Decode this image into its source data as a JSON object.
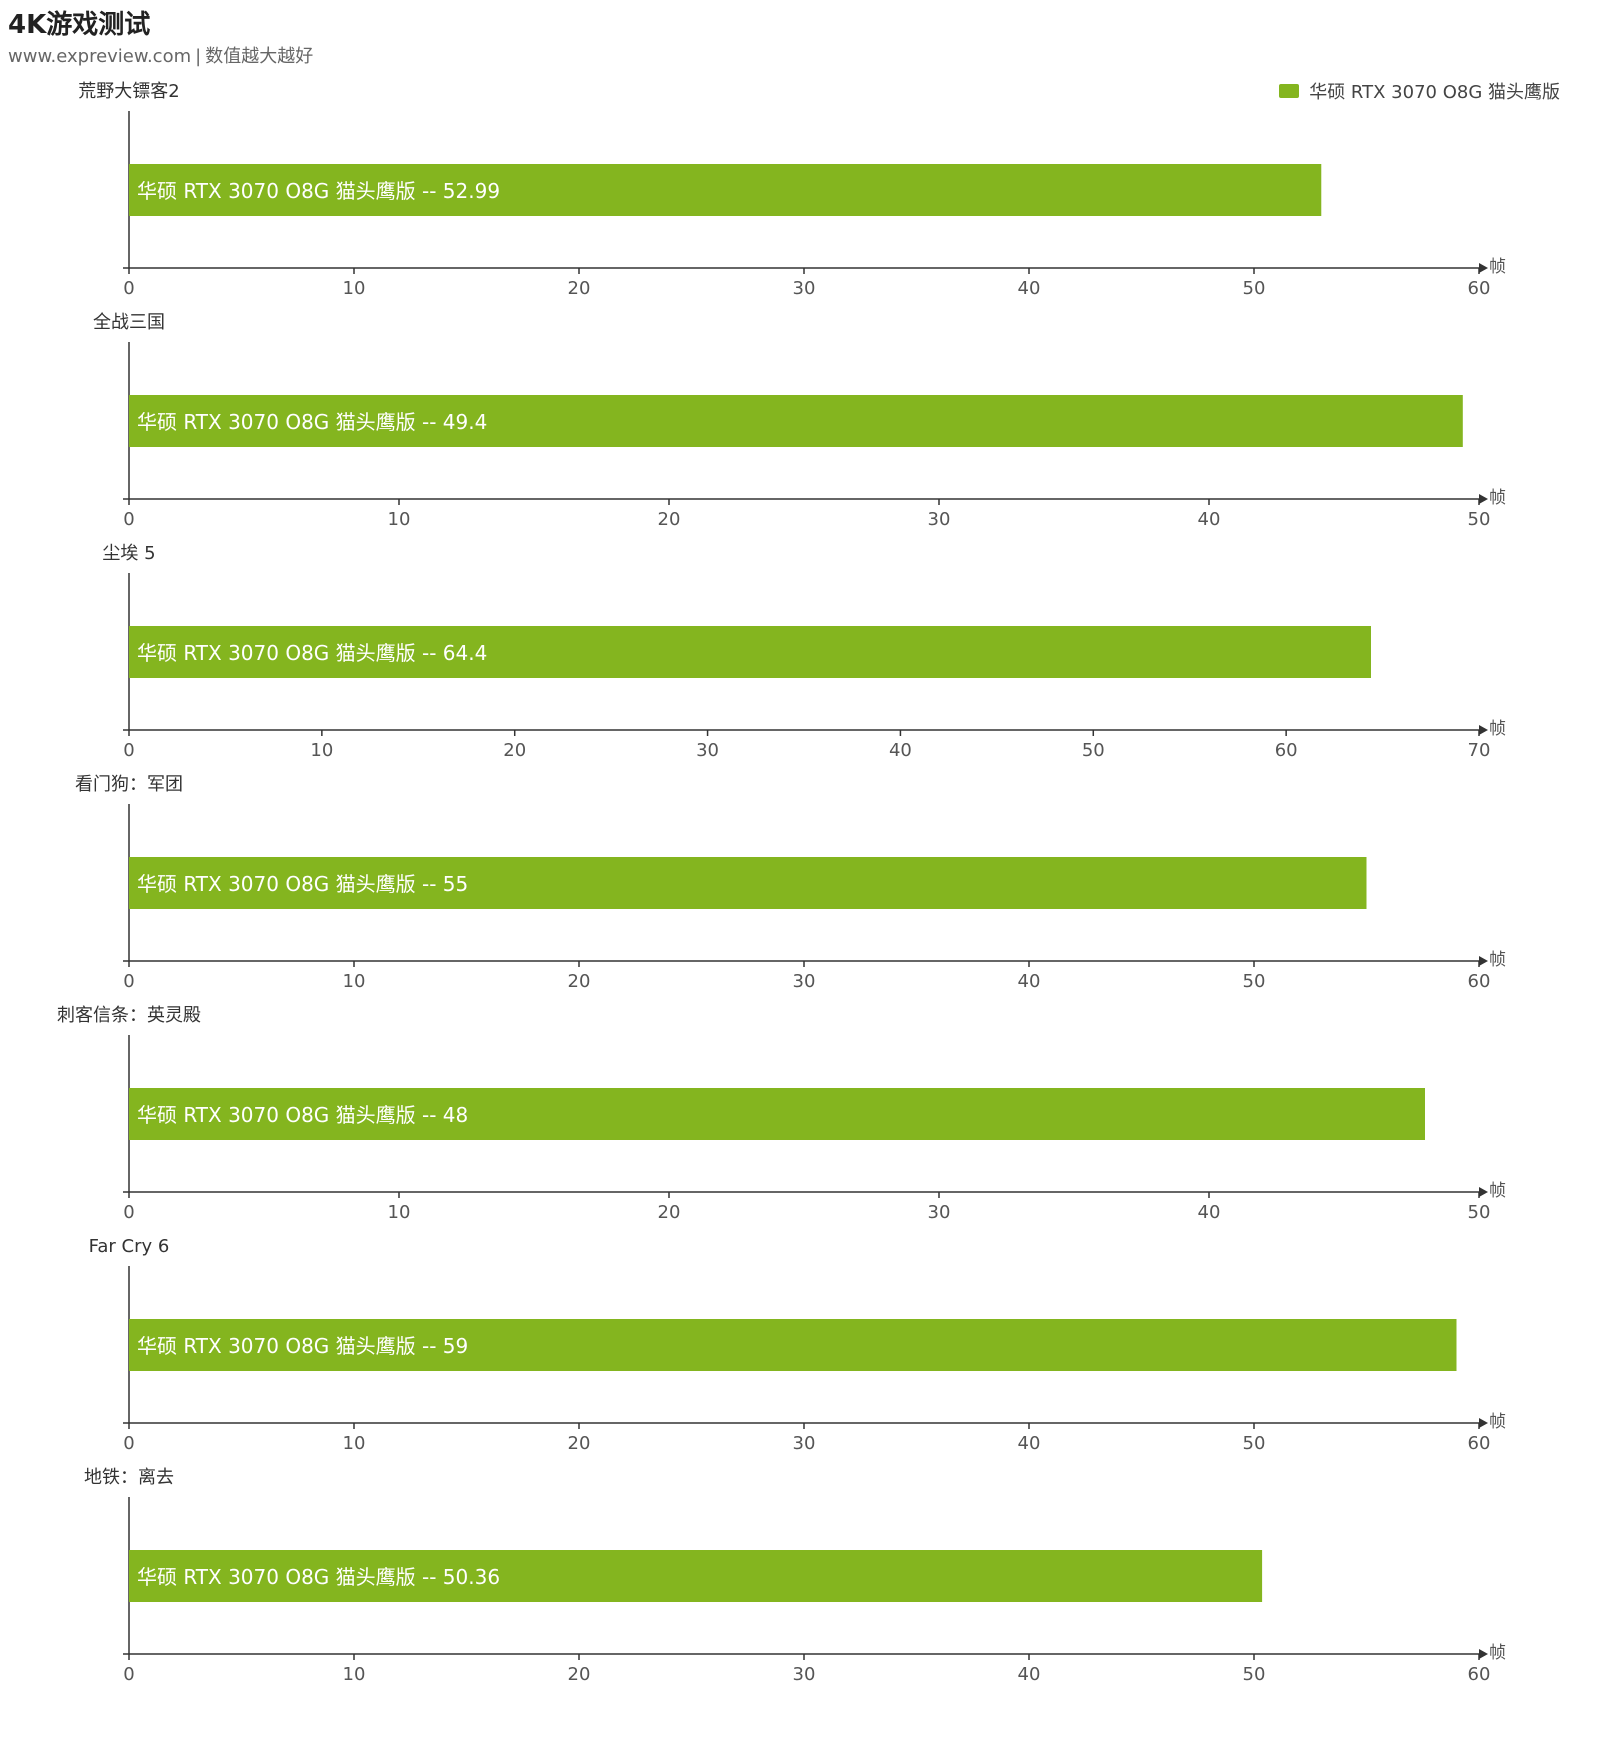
{
  "header": {
    "title": "4K游戏测试",
    "source": "www.expreview.com",
    "separator": "|",
    "note": "数值越大越好"
  },
  "legend": {
    "label": "华硕 RTX 3070 O8G 猫头鹰版",
    "color": "#84b51f"
  },
  "chart_data": [
    {
      "type": "bar",
      "orientation": "horizontal",
      "title": "荒野大镖客2",
      "series": [
        {
          "name": "华硕 RTX 3070 O8G 猫头鹰版",
          "values": [
            52.99
          ]
        }
      ],
      "xlim": [
        0,
        60
      ],
      "xticks": [
        0,
        10,
        20,
        30,
        40,
        50,
        60
      ],
      "unit": "帧",
      "bar_label": "华硕 RTX 3070 O8G 猫头鹰版  --  52.99"
    },
    {
      "type": "bar",
      "orientation": "horizontal",
      "title": "全战三国",
      "series": [
        {
          "name": "华硕 RTX 3070 O8G 猫头鹰版",
          "values": [
            49.4
          ]
        }
      ],
      "xlim": [
        0,
        50
      ],
      "xticks": [
        0,
        10,
        20,
        30,
        40,
        50
      ],
      "unit": "帧",
      "bar_label": "华硕 RTX 3070 O8G 猫头鹰版  --  49.4"
    },
    {
      "type": "bar",
      "orientation": "horizontal",
      "title": "尘埃 5",
      "series": [
        {
          "name": "华硕 RTX 3070 O8G 猫头鹰版",
          "values": [
            64.4
          ]
        }
      ],
      "xlim": [
        0,
        70
      ],
      "xticks": [
        0,
        10,
        20,
        30,
        40,
        50,
        60,
        70
      ],
      "unit": "帧",
      "bar_label": "华硕 RTX 3070 O8G 猫头鹰版  --  64.4"
    },
    {
      "type": "bar",
      "orientation": "horizontal",
      "title": "看门狗：军团",
      "series": [
        {
          "name": "华硕 RTX 3070 O8G 猫头鹰版",
          "values": [
            55
          ]
        }
      ],
      "xlim": [
        0,
        60
      ],
      "xticks": [
        0,
        10,
        20,
        30,
        40,
        50,
        60
      ],
      "unit": "帧",
      "bar_label": "华硕 RTX 3070 O8G 猫头鹰版  --  55"
    },
    {
      "type": "bar",
      "orientation": "horizontal",
      "title": "刺客信条：英灵殿",
      "series": [
        {
          "name": "华硕 RTX 3070 O8G 猫头鹰版",
          "values": [
            48
          ]
        }
      ],
      "xlim": [
        0,
        50
      ],
      "xticks": [
        0,
        10,
        20,
        30,
        40,
        50
      ],
      "unit": "帧",
      "bar_label": "华硕 RTX 3070 O8G 猫头鹰版  --  48"
    },
    {
      "type": "bar",
      "orientation": "horizontal",
      "title": "Far Cry 6",
      "series": [
        {
          "name": "华硕 RTX 3070 O8G 猫头鹰版",
          "values": [
            59
          ]
        }
      ],
      "xlim": [
        0,
        60
      ],
      "xticks": [
        0,
        10,
        20,
        30,
        40,
        50,
        60
      ],
      "unit": "帧",
      "bar_label": "华硕 RTX 3070 O8G 猫头鹰版  --  59"
    },
    {
      "type": "bar",
      "orientation": "horizontal",
      "title": "地铁：离去",
      "series": [
        {
          "name": "华硕 RTX 3070 O8G 猫头鹰版",
          "values": [
            50.36
          ]
        }
      ],
      "xlim": [
        0,
        60
      ],
      "xticks": [
        0,
        10,
        20,
        30,
        40,
        50,
        60
      ],
      "unit": "帧",
      "bar_label": "华硕 RTX 3070 O8G 猫头鹰版  --  50.36"
    }
  ]
}
